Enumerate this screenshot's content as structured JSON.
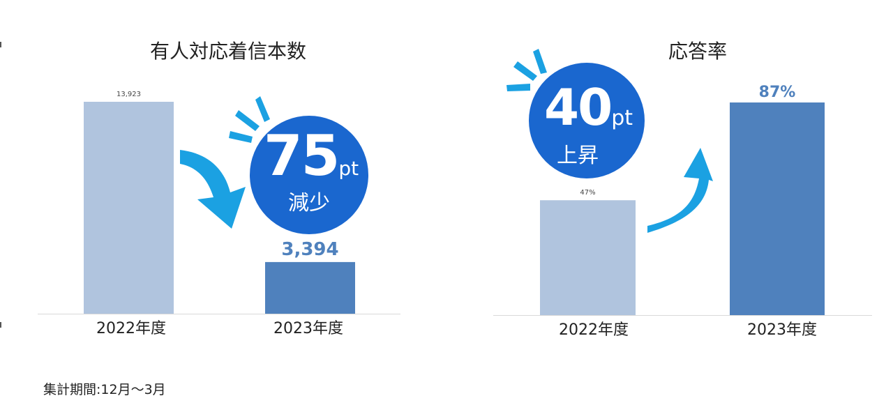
{
  "chart_data": [
    {
      "type": "bar",
      "title": "有人対応着信本数",
      "categories": [
        "2022年度",
        "2023年度"
      ],
      "values": [
        13923,
        3394
      ],
      "value_labels": [
        "13,923",
        "3,394"
      ],
      "ylim": [
        0,
        14000
      ],
      "grid": false,
      "colors": [
        "#b0c4de",
        "#4f81bd"
      ],
      "annotation": {
        "value": "75",
        "unit": "pt",
        "text": "減少",
        "color": "#1a67cf",
        "arrow": "down",
        "arrow_color": "#1ba1e2"
      }
    },
    {
      "type": "bar",
      "title": "応答率",
      "categories": [
        "2022年度",
        "2023年度"
      ],
      "values": [
        47,
        87
      ],
      "value_labels": [
        "47%",
        "87%"
      ],
      "ylim": [
        0,
        100
      ],
      "grid": false,
      "colors": [
        "#b0c4de",
        "#4f81bd"
      ],
      "annotation": {
        "value": "40",
        "unit": "pt",
        "text": "上昇",
        "color": "#1a67cf",
        "arrow": "up",
        "arrow_color": "#1ba1e2"
      }
    }
  ],
  "footnote": "集計期間:12月～3月"
}
